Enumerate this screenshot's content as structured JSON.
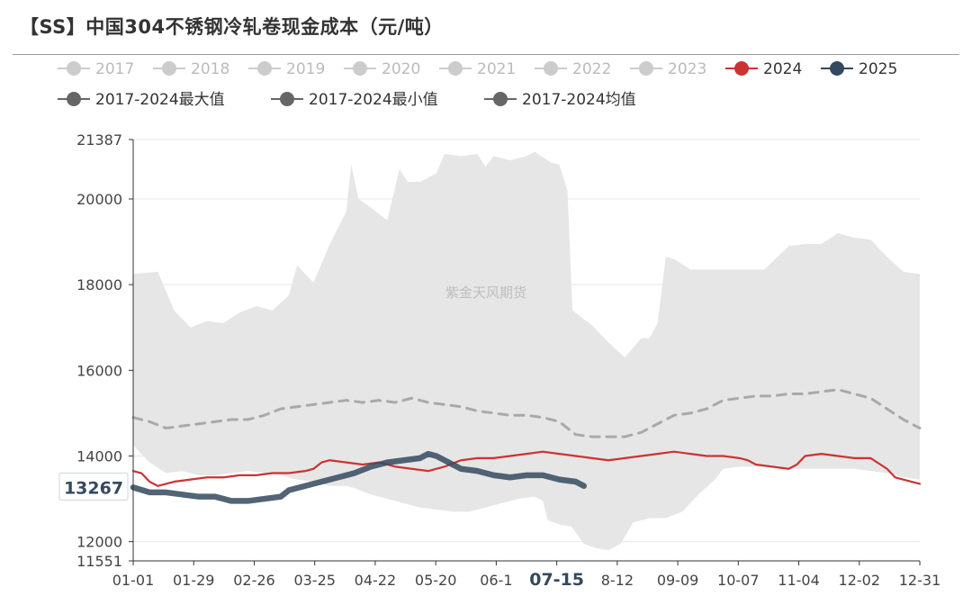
{
  "title": "【SS】中国304不锈钢冷轧卷现金成本（元/吨）",
  "watermark": "紫金天风期货",
  "colors": {
    "legend_inactive": "#cccccc",
    "legend_text_inactive": "#bbbbbb",
    "series_2024": "#cc3333",
    "series_2025": "#34495e",
    "stat_marker": "#666666",
    "band_fill": "#e6e6e6",
    "avg_line": "#a9a9a9",
    "grid": "#e8e8e8",
    "axis": "#333333"
  },
  "chart_data": {
    "type": "line",
    "title": "【SS】中国304不锈钢冷轧卷现金成本（元/吨）",
    "x_labels": [
      "01-01",
      "01-29",
      "02-26",
      "03-25",
      "04-22",
      "05-20",
      "06-1",
      "07-15",
      "8-12",
      "09-09",
      "10-07",
      "11-04",
      "12-02",
      "12-31"
    ],
    "x_highlight_label": "07-15",
    "y_ticks": [
      11551,
      12000,
      14000,
      16000,
      18000,
      20000,
      21387
    ],
    "ylim": [
      11551,
      21387
    ],
    "current_value_label": "13267",
    "grid": "horizontal",
    "legend_position": "top",
    "legend": [
      {
        "name": "2017",
        "active": false
      },
      {
        "name": "2018",
        "active": false
      },
      {
        "name": "2019",
        "active": false
      },
      {
        "name": "2020",
        "active": false
      },
      {
        "name": "2021",
        "active": false
      },
      {
        "name": "2022",
        "active": false
      },
      {
        "name": "2023",
        "active": false
      },
      {
        "name": "2024",
        "active": true
      },
      {
        "name": "2025",
        "active": true
      },
      {
        "name": "2017-2024最大值",
        "active": true
      },
      {
        "name": "2017-2024最小值",
        "active": true
      },
      {
        "name": "2017-2024均值",
        "active": true
      }
    ],
    "band_max": [
      [
        0,
        18250
      ],
      [
        3,
        18300
      ],
      [
        5,
        17400
      ],
      [
        7,
        17000
      ],
      [
        9,
        17150
      ],
      [
        11,
        17100
      ],
      [
        13,
        17350
      ],
      [
        15,
        17500
      ],
      [
        17,
        17400
      ],
      [
        19,
        17750
      ],
      [
        20,
        18450
      ],
      [
        22,
        18050
      ],
      [
        24,
        18950
      ],
      [
        26,
        19700
      ],
      [
        26.6,
        20800
      ],
      [
        27.5,
        20000
      ],
      [
        29,
        19800
      ],
      [
        31,
        19500
      ],
      [
        32.5,
        20700
      ],
      [
        33.5,
        20400
      ],
      [
        35,
        20400
      ],
      [
        37,
        20600
      ],
      [
        38,
        21050
      ],
      [
        40,
        21000
      ],
      [
        42,
        21050
      ],
      [
        43,
        20750
      ],
      [
        44,
        21000
      ],
      [
        46,
        20900
      ],
      [
        48,
        21000
      ],
      [
        49,
        21100
      ],
      [
        51,
        20850
      ],
      [
        52,
        20800
      ],
      [
        53,
        20200
      ],
      [
        53.6,
        17400
      ],
      [
        56,
        17050
      ],
      [
        58,
        16650
      ],
      [
        60,
        16300
      ],
      [
        62,
        16750
      ],
      [
        63,
        16750
      ],
      [
        64,
        17100
      ],
      [
        65,
        18650
      ],
      [
        66,
        18600
      ],
      [
        68,
        18350
      ],
      [
        70,
        18350
      ],
      [
        72,
        18350
      ],
      [
        75,
        18350
      ],
      [
        77,
        18350
      ],
      [
        80,
        18900
      ],
      [
        82,
        18950
      ],
      [
        84,
        18950
      ],
      [
        86,
        19200
      ],
      [
        88,
        19100
      ],
      [
        90,
        19050
      ],
      [
        92,
        18650
      ],
      [
        94,
        18300
      ],
      [
        96,
        18250
      ]
    ],
    "band_min": [
      [
        0,
        14250
      ],
      [
        2,
        13850
      ],
      [
        4,
        13600
      ],
      [
        6,
        13650
      ],
      [
        8,
        13550
      ],
      [
        10,
        13550
      ],
      [
        12,
        13600
      ],
      [
        14,
        13650
      ],
      [
        16,
        13600
      ],
      [
        18,
        13550
      ],
      [
        20,
        13450
      ],
      [
        22,
        13400
      ],
      [
        24,
        13300
      ],
      [
        26,
        13300
      ],
      [
        27,
        13250
      ],
      [
        29,
        13100
      ],
      [
        31,
        13000
      ],
      [
        33,
        12900
      ],
      [
        35,
        12800
      ],
      [
        37,
        12750
      ],
      [
        39,
        12700
      ],
      [
        41,
        12700
      ],
      [
        43,
        12800
      ],
      [
        45,
        12900
      ],
      [
        47,
        13000
      ],
      [
        49,
        13050
      ],
      [
        50,
        12950
      ],
      [
        50.6,
        12500
      ],
      [
        52,
        12400
      ],
      [
        53.5,
        12350
      ],
      [
        55,
        11950
      ],
      [
        56.5,
        11850
      ],
      [
        58,
        11800
      ],
      [
        59.5,
        11950
      ],
      [
        61,
        12450
      ],
      [
        63,
        12550
      ],
      [
        65,
        12550
      ],
      [
        67,
        12700
      ],
      [
        69,
        13100
      ],
      [
        71,
        13450
      ],
      [
        72,
        13700
      ],
      [
        74,
        13750
      ],
      [
        76,
        13750
      ],
      [
        78,
        13750
      ],
      [
        80,
        13700
      ],
      [
        82,
        13700
      ],
      [
        84,
        13700
      ],
      [
        86,
        13700
      ],
      [
        88,
        13700
      ],
      [
        90,
        13650
      ],
      [
        92,
        13600
      ],
      [
        94,
        13500
      ],
      [
        96,
        13450
      ]
    ],
    "series": [
      {
        "name": "2017-2024均值",
        "points": [
          [
            0,
            14900
          ],
          [
            2,
            14800
          ],
          [
            4,
            14650
          ],
          [
            6,
            14700
          ],
          [
            8,
            14750
          ],
          [
            10,
            14800
          ],
          [
            12,
            14850
          ],
          [
            14,
            14850
          ],
          [
            16,
            14950
          ],
          [
            18,
            15100
          ],
          [
            20,
            15150
          ],
          [
            22,
            15200
          ],
          [
            24,
            15250
          ],
          [
            26,
            15300
          ],
          [
            28,
            15250
          ],
          [
            30,
            15300
          ],
          [
            32,
            15250
          ],
          [
            34,
            15350
          ],
          [
            36,
            15250
          ],
          [
            38,
            15200
          ],
          [
            40,
            15150
          ],
          [
            42,
            15050
          ],
          [
            44,
            15000
          ],
          [
            46,
            14950
          ],
          [
            48,
            14950
          ],
          [
            50,
            14900
          ],
          [
            52,
            14800
          ],
          [
            54,
            14500
          ],
          [
            56,
            14450
          ],
          [
            58,
            14450
          ],
          [
            60,
            14450
          ],
          [
            62,
            14550
          ],
          [
            64,
            14750
          ],
          [
            66,
            14950
          ],
          [
            68,
            15000
          ],
          [
            70,
            15100
          ],
          [
            72,
            15300
          ],
          [
            74,
            15350
          ],
          [
            76,
            15400
          ],
          [
            78,
            15400
          ],
          [
            80,
            15450
          ],
          [
            82,
            15450
          ],
          [
            84,
            15500
          ],
          [
            86,
            15550
          ],
          [
            88,
            15450
          ],
          [
            90,
            15350
          ],
          [
            92,
            15100
          ],
          [
            94,
            14850
          ],
          [
            96,
            14650
          ]
        ]
      },
      {
        "name": "2024",
        "points": [
          [
            0,
            13650
          ],
          [
            1,
            13600
          ],
          [
            2,
            13400
          ],
          [
            3,
            13300
          ],
          [
            4,
            13350
          ],
          [
            5,
            13400
          ],
          [
            7,
            13450
          ],
          [
            9,
            13500
          ],
          [
            11,
            13500
          ],
          [
            13,
            13550
          ],
          [
            15,
            13550
          ],
          [
            17,
            13600
          ],
          [
            19,
            13600
          ],
          [
            21,
            13650
          ],
          [
            22,
            13700
          ],
          [
            23,
            13850
          ],
          [
            24,
            13900
          ],
          [
            26,
            13850
          ],
          [
            28,
            13800
          ],
          [
            30,
            13850
          ],
          [
            32,
            13750
          ],
          [
            34,
            13700
          ],
          [
            36,
            13650
          ],
          [
            38,
            13750
          ],
          [
            40,
            13900
          ],
          [
            42,
            13950
          ],
          [
            44,
            13950
          ],
          [
            46,
            14000
          ],
          [
            48,
            14050
          ],
          [
            50,
            14100
          ],
          [
            52,
            14050
          ],
          [
            54,
            14000
          ],
          [
            56,
            13950
          ],
          [
            58,
            13900
          ],
          [
            60,
            13950
          ],
          [
            62,
            14000
          ],
          [
            64,
            14050
          ],
          [
            66,
            14100
          ],
          [
            68,
            14050
          ],
          [
            70,
            14000
          ],
          [
            72,
            14000
          ],
          [
            74,
            13950
          ],
          [
            75,
            13900
          ],
          [
            76,
            13800
          ],
          [
            78,
            13750
          ],
          [
            80,
            13700
          ],
          [
            81,
            13800
          ],
          [
            82,
            14000
          ],
          [
            84,
            14050
          ],
          [
            86,
            14000
          ],
          [
            88,
            13950
          ],
          [
            90,
            13950
          ],
          [
            92,
            13700
          ],
          [
            93,
            13500
          ],
          [
            94,
            13450
          ],
          [
            95,
            13400
          ],
          [
            96,
            13350
          ]
        ]
      },
      {
        "name": "2025",
        "points": [
          [
            0,
            13267
          ],
          [
            2,
            13150
          ],
          [
            4,
            13150
          ],
          [
            6,
            13100
          ],
          [
            8,
            13050
          ],
          [
            10,
            13050
          ],
          [
            11,
            13000
          ],
          [
            12,
            12950
          ],
          [
            14,
            12950
          ],
          [
            16,
            13000
          ],
          [
            18,
            13050
          ],
          [
            19,
            13200
          ],
          [
            21,
            13300
          ],
          [
            23,
            13400
          ],
          [
            25,
            13500
          ],
          [
            27,
            13600
          ],
          [
            29,
            13750
          ],
          [
            31,
            13850
          ],
          [
            33,
            13900
          ],
          [
            35,
            13950
          ],
          [
            36,
            14050
          ],
          [
            37,
            14000
          ],
          [
            38,
            13900
          ],
          [
            40,
            13700
          ],
          [
            42,
            13650
          ],
          [
            44,
            13550
          ],
          [
            46,
            13500
          ],
          [
            48,
            13550
          ],
          [
            50,
            13550
          ],
          [
            52,
            13450
          ],
          [
            54,
            13400
          ],
          [
            55,
            13300
          ]
        ]
      }
    ]
  }
}
